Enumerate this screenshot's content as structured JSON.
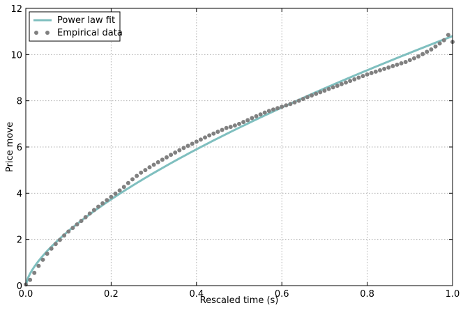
{
  "chart_data": {
    "type": "line",
    "xlabel": "Rescaled time (s)",
    "ylabel": "Price move",
    "xlim": [
      0.0,
      1.0
    ],
    "ylim": [
      0,
      12
    ],
    "x_ticks": [
      "0.0",
      "0.2",
      "0.4",
      "0.6",
      "0.8",
      "1.0"
    ],
    "y_ticks": [
      "0",
      "2",
      "4",
      "6",
      "8",
      "10",
      "12"
    ],
    "x_tick_values": [
      0.0,
      0.2,
      0.4,
      0.6,
      0.8,
      1.0
    ],
    "y_tick_values": [
      0,
      2,
      4,
      6,
      8,
      10,
      12
    ],
    "grid": true,
    "legend_position": "top-left",
    "series": [
      {
        "name": "Power law fit",
        "kind": "line",
        "color": "#7fbfbf",
        "fit": {
          "a": 10.8,
          "b": 0.66
        }
      },
      {
        "name": "Empirical data",
        "kind": "scatter",
        "color": "#808080",
        "x": [
          0.0,
          0.01,
          0.02,
          0.03,
          0.04,
          0.05,
          0.06,
          0.07,
          0.08,
          0.09,
          0.1,
          0.11,
          0.12,
          0.13,
          0.14,
          0.15,
          0.16,
          0.17,
          0.18,
          0.19,
          0.2,
          0.21,
          0.22,
          0.23,
          0.24,
          0.25,
          0.26,
          0.27,
          0.28,
          0.29,
          0.3,
          0.31,
          0.32,
          0.33,
          0.34,
          0.35,
          0.36,
          0.37,
          0.38,
          0.39,
          0.4,
          0.41,
          0.42,
          0.43,
          0.44,
          0.45,
          0.46,
          0.47,
          0.48,
          0.49,
          0.5,
          0.51,
          0.52,
          0.53,
          0.54,
          0.55,
          0.56,
          0.57,
          0.58,
          0.59,
          0.6,
          0.61,
          0.62,
          0.63,
          0.64,
          0.65,
          0.66,
          0.67,
          0.68,
          0.69,
          0.7,
          0.71,
          0.72,
          0.73,
          0.74,
          0.75,
          0.76,
          0.77,
          0.78,
          0.79,
          0.8,
          0.81,
          0.82,
          0.83,
          0.84,
          0.85,
          0.86,
          0.87,
          0.88,
          0.89,
          0.9,
          0.91,
          0.92,
          0.93,
          0.94,
          0.95,
          0.96,
          0.97,
          0.98,
          0.99,
          1.0
        ],
        "y": [
          0.05,
          0.25,
          0.55,
          0.85,
          1.12,
          1.38,
          1.6,
          1.8,
          1.98,
          2.17,
          2.34,
          2.5,
          2.65,
          2.8,
          2.96,
          3.12,
          3.27,
          3.42,
          3.56,
          3.7,
          3.84,
          3.98,
          4.12,
          4.27,
          4.44,
          4.6,
          4.75,
          4.89,
          5.0,
          5.12,
          5.23,
          5.34,
          5.45,
          5.55,
          5.66,
          5.76,
          5.86,
          5.96,
          6.05,
          6.14,
          6.23,
          6.32,
          6.41,
          6.5,
          6.58,
          6.66,
          6.74,
          6.82,
          6.87,
          6.93,
          7.0,
          7.08,
          7.16,
          7.25,
          7.33,
          7.41,
          7.49,
          7.56,
          7.62,
          7.68,
          7.74,
          7.8,
          7.86,
          7.93,
          8.0,
          8.08,
          8.16,
          8.23,
          8.3,
          8.37,
          8.44,
          8.51,
          8.58,
          8.65,
          8.72,
          8.79,
          8.86,
          8.93,
          9.0,
          9.07,
          9.14,
          9.2,
          9.26,
          9.32,
          9.38,
          9.44,
          9.5,
          9.56,
          9.62,
          9.68,
          9.76,
          9.84,
          9.92,
          10.02,
          10.12,
          10.22,
          10.35,
          10.48,
          10.62,
          10.85,
          10.55
        ]
      }
    ]
  }
}
